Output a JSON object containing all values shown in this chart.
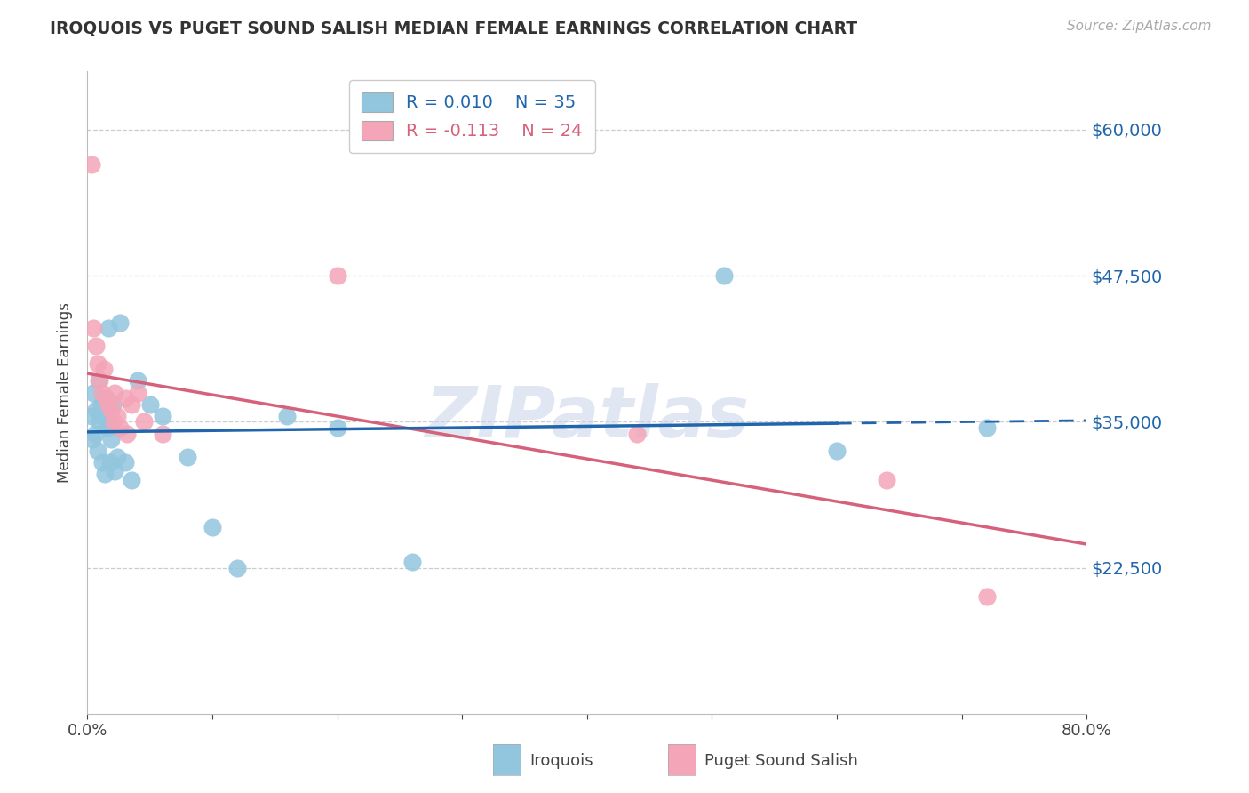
{
  "title": "IROQUOIS VS PUGET SOUND SALISH MEDIAN FEMALE EARNINGS CORRELATION CHART",
  "source": "Source: ZipAtlas.com",
  "ylabel": "Median Female Earnings",
  "xlim": [
    0.0,
    0.8
  ],
  "ylim": [
    10000,
    65000
  ],
  "yticks": [
    22500,
    35000,
    47500,
    60000
  ],
  "ytick_labels": [
    "$22,500",
    "$35,000",
    "$47,500",
    "$60,000"
  ],
  "xticks": [
    0.0,
    0.1,
    0.2,
    0.3,
    0.4,
    0.5,
    0.6,
    0.7,
    0.8
  ],
  "xtick_labels": [
    "0.0%",
    "",
    "",
    "",
    "",
    "",
    "",
    "",
    "80.0%"
  ],
  "iroquois_color": "#92c5de",
  "puget_color": "#f4a5b8",
  "iroquois_R": 0.01,
  "iroquois_N": 35,
  "puget_R": -0.113,
  "puget_N": 24,
  "blue_line_color": "#2166ac",
  "pink_line_color": "#d6617b",
  "watermark": "ZIPatlas",
  "blue_line_solid_end": 0.6,
  "iroquois_x": [
    0.003,
    0.004,
    0.005,
    0.006,
    0.007,
    0.008,
    0.009,
    0.01,
    0.011,
    0.012,
    0.013,
    0.014,
    0.015,
    0.016,
    0.017,
    0.018,
    0.019,
    0.02,
    0.022,
    0.024,
    0.026,
    0.03,
    0.035,
    0.04,
    0.05,
    0.06,
    0.08,
    0.1,
    0.12,
    0.16,
    0.2,
    0.26,
    0.51,
    0.6,
    0.72
  ],
  "iroquois_y": [
    35500,
    33500,
    37500,
    34000,
    36000,
    32500,
    38500,
    35000,
    36500,
    31500,
    37000,
    30500,
    35000,
    34500,
    43000,
    31500,
    33500,
    36500,
    30800,
    32000,
    43500,
    31500,
    30000,
    38500,
    36500,
    35500,
    32000,
    26000,
    22500,
    35500,
    34500,
    23000,
    47500,
    32500,
    34500
  ],
  "puget_x": [
    0.003,
    0.005,
    0.007,
    0.008,
    0.01,
    0.012,
    0.013,
    0.015,
    0.017,
    0.019,
    0.021,
    0.022,
    0.024,
    0.026,
    0.03,
    0.032,
    0.035,
    0.04,
    0.045,
    0.06,
    0.2,
    0.44,
    0.64,
    0.72
  ],
  "puget_y": [
    57000,
    43000,
    41500,
    40000,
    38500,
    37500,
    39500,
    37000,
    36500,
    36000,
    35000,
    37500,
    35500,
    34500,
    37000,
    34000,
    36500,
    37500,
    35000,
    34000,
    47500,
    34000,
    30000,
    20000
  ]
}
